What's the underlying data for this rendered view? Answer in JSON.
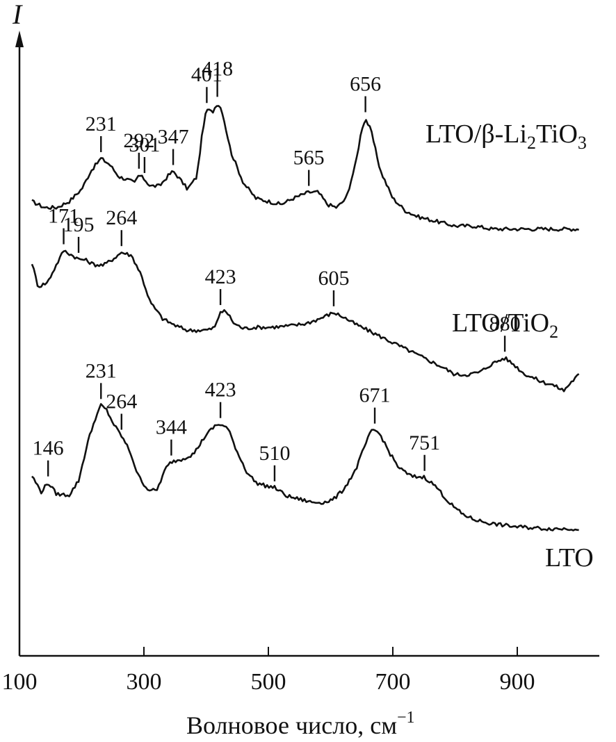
{
  "chart_data": {
    "type": "line",
    "ylabel": "I",
    "xlabel": "Волновое число, см",
    "xlabel_sup": "−1",
    "xlim": [
      120,
      1000
    ],
    "ylim": [
      0,
      1
    ],
    "x_ticks": [
      100,
      300,
      500,
      700,
      900
    ],
    "x_tick_labels": [
      "100",
      "300",
      "500",
      "700",
      "900"
    ],
    "grid": false,
    "legend": "none",
    "series": [
      {
        "name_parts": [
          "LTO/β-Li",
          "2",
          "TiO",
          "3"
        ],
        "baseline": 0.7,
        "peaks": [
          {
            "x": 231,
            "label": "231"
          },
          {
            "x": 292,
            "label": "292"
          },
          {
            "x": 301,
            "label": "301"
          },
          {
            "x": 347,
            "label": "347"
          },
          {
            "x": 401,
            "label": "401"
          },
          {
            "x": 418,
            "label": "418"
          },
          {
            "x": 565,
            "label": "565"
          },
          {
            "x": 656,
            "label": "656"
          }
        ],
        "points": [
          [
            120,
            0.74
          ],
          [
            140,
            0.73
          ],
          [
            160,
            0.73
          ],
          [
            180,
            0.74
          ],
          [
            200,
            0.76
          ],
          [
            215,
            0.79
          ],
          [
            231,
            0.81
          ],
          [
            245,
            0.8
          ],
          [
            260,
            0.78
          ],
          [
            275,
            0.775
          ],
          [
            285,
            0.77
          ],
          [
            292,
            0.783
          ],
          [
            301,
            0.776
          ],
          [
            310,
            0.765
          ],
          [
            325,
            0.765
          ],
          [
            340,
            0.783
          ],
          [
            347,
            0.789
          ],
          [
            355,
            0.78
          ],
          [
            370,
            0.76
          ],
          [
            385,
            0.78
          ],
          [
            395,
            0.86
          ],
          [
            401,
            0.89
          ],
          [
            410,
            0.885
          ],
          [
            418,
            0.9
          ],
          [
            425,
            0.89
          ],
          [
            440,
            0.82
          ],
          [
            460,
            0.77
          ],
          [
            480,
            0.745
          ],
          [
            500,
            0.74
          ],
          [
            520,
            0.735
          ],
          [
            540,
            0.745
          ],
          [
            565,
            0.755
          ],
          [
            580,
            0.755
          ],
          [
            595,
            0.735
          ],
          [
            610,
            0.73
          ],
          [
            625,
            0.745
          ],
          [
            640,
            0.8
          ],
          [
            650,
            0.858
          ],
          [
            656,
            0.875
          ],
          [
            665,
            0.855
          ],
          [
            680,
            0.79
          ],
          [
            700,
            0.745
          ],
          [
            720,
            0.725
          ],
          [
            740,
            0.715
          ],
          [
            760,
            0.71
          ],
          [
            780,
            0.705
          ],
          [
            800,
            0.7
          ],
          [
            830,
            0.7
          ],
          [
            860,
            0.695
          ],
          [
            900,
            0.695
          ],
          [
            950,
            0.695
          ],
          [
            1000,
            0.695
          ]
        ]
      },
      {
        "name_parts": [
          "LTO/TiO",
          "2"
        ],
        "baseline": 0.451,
        "peaks": [
          {
            "x": 171,
            "label": "171"
          },
          {
            "x": 195,
            "label": "195"
          },
          {
            "x": 264,
            "label": "264"
          },
          {
            "x": 423,
            "label": "423"
          },
          {
            "x": 605,
            "label": "605"
          },
          {
            "x": 880,
            "label": "880"
          }
        ],
        "points": [
          [
            120,
            0.64
          ],
          [
            130,
            0.601
          ],
          [
            145,
            0.608
          ],
          [
            160,
            0.638
          ],
          [
            171,
            0.66
          ],
          [
            180,
            0.655
          ],
          [
            195,
            0.646
          ],
          [
            205,
            0.645
          ],
          [
            220,
            0.637
          ],
          [
            235,
            0.636
          ],
          [
            250,
            0.646
          ],
          [
            264,
            0.657
          ],
          [
            280,
            0.652
          ],
          [
            295,
            0.622
          ],
          [
            310,
            0.576
          ],
          [
            330,
            0.549
          ],
          [
            350,
            0.538
          ],
          [
            370,
            0.53
          ],
          [
            385,
            0.53
          ],
          [
            405,
            0.531
          ],
          [
            415,
            0.536
          ],
          [
            423,
            0.561
          ],
          [
            433,
            0.56
          ],
          [
            445,
            0.541
          ],
          [
            460,
            0.533
          ],
          [
            480,
            0.535
          ],
          [
            500,
            0.535
          ],
          [
            520,
            0.536
          ],
          [
            540,
            0.538
          ],
          [
            560,
            0.541
          ],
          [
            580,
            0.548
          ],
          [
            605,
            0.559
          ],
          [
            620,
            0.552
          ],
          [
            640,
            0.54
          ],
          [
            660,
            0.53
          ],
          [
            680,
            0.52
          ],
          [
            700,
            0.51
          ],
          [
            720,
            0.5
          ],
          [
            740,
            0.49
          ],
          [
            760,
            0.48
          ],
          [
            780,
            0.47
          ],
          [
            800,
            0.458
          ],
          [
            820,
            0.458
          ],
          [
            840,
            0.462
          ],
          [
            860,
            0.476
          ],
          [
            880,
            0.485
          ],
          [
            895,
            0.474
          ],
          [
            910,
            0.46
          ],
          [
            925,
            0.453
          ],
          [
            940,
            0.446
          ],
          [
            955,
            0.442
          ],
          [
            965,
            0.437
          ],
          [
            975,
            0.432
          ],
          [
            985,
            0.444
          ],
          [
            1000,
            0.459
          ]
        ]
      },
      {
        "name_parts": [
          "LTO"
        ],
        "baseline": 0.113,
        "peaks": [
          {
            "x": 146,
            "label": "146"
          },
          {
            "x": 231,
            "label": "231"
          },
          {
            "x": 264,
            "label": "264"
          },
          {
            "x": 344,
            "label": "344"
          },
          {
            "x": 423,
            "label": "423"
          },
          {
            "x": 510,
            "label": "510"
          },
          {
            "x": 671,
            "label": "671"
          },
          {
            "x": 751,
            "label": "751"
          }
        ],
        "points": [
          [
            120,
            0.293
          ],
          [
            135,
            0.267
          ],
          [
            146,
            0.282
          ],
          [
            160,
            0.263
          ],
          [
            180,
            0.262
          ],
          [
            195,
            0.285
          ],
          [
            210,
            0.349
          ],
          [
            222,
            0.387
          ],
          [
            231,
            0.408
          ],
          [
            240,
            0.4
          ],
          [
            252,
            0.376
          ],
          [
            264,
            0.358
          ],
          [
            278,
            0.332
          ],
          [
            290,
            0.295
          ],
          [
            305,
            0.272
          ],
          [
            320,
            0.268
          ],
          [
            335,
            0.305
          ],
          [
            344,
            0.316
          ],
          [
            360,
            0.32
          ],
          [
            380,
            0.329
          ],
          [
            400,
            0.36
          ],
          [
            415,
            0.375
          ],
          [
            423,
            0.377
          ],
          [
            435,
            0.37
          ],
          [
            450,
            0.332
          ],
          [
            465,
            0.3
          ],
          [
            480,
            0.282
          ],
          [
            495,
            0.277
          ],
          [
            510,
            0.274
          ],
          [
            530,
            0.26
          ],
          [
            550,
            0.255
          ],
          [
            570,
            0.25
          ],
          [
            590,
            0.25
          ],
          [
            605,
            0.255
          ],
          [
            620,
            0.27
          ],
          [
            640,
            0.302
          ],
          [
            655,
            0.342
          ],
          [
            665,
            0.365
          ],
          [
            671,
            0.368
          ],
          [
            680,
            0.36
          ],
          [
            695,
            0.33
          ],
          [
            710,
            0.306
          ],
          [
            730,
            0.292
          ],
          [
            751,
            0.291
          ],
          [
            770,
            0.275
          ],
          [
            790,
            0.25
          ],
          [
            810,
            0.232
          ],
          [
            830,
            0.222
          ],
          [
            860,
            0.215
          ],
          [
            900,
            0.21
          ],
          [
            950,
            0.207
          ],
          [
            1000,
            0.207
          ]
        ]
      }
    ]
  }
}
